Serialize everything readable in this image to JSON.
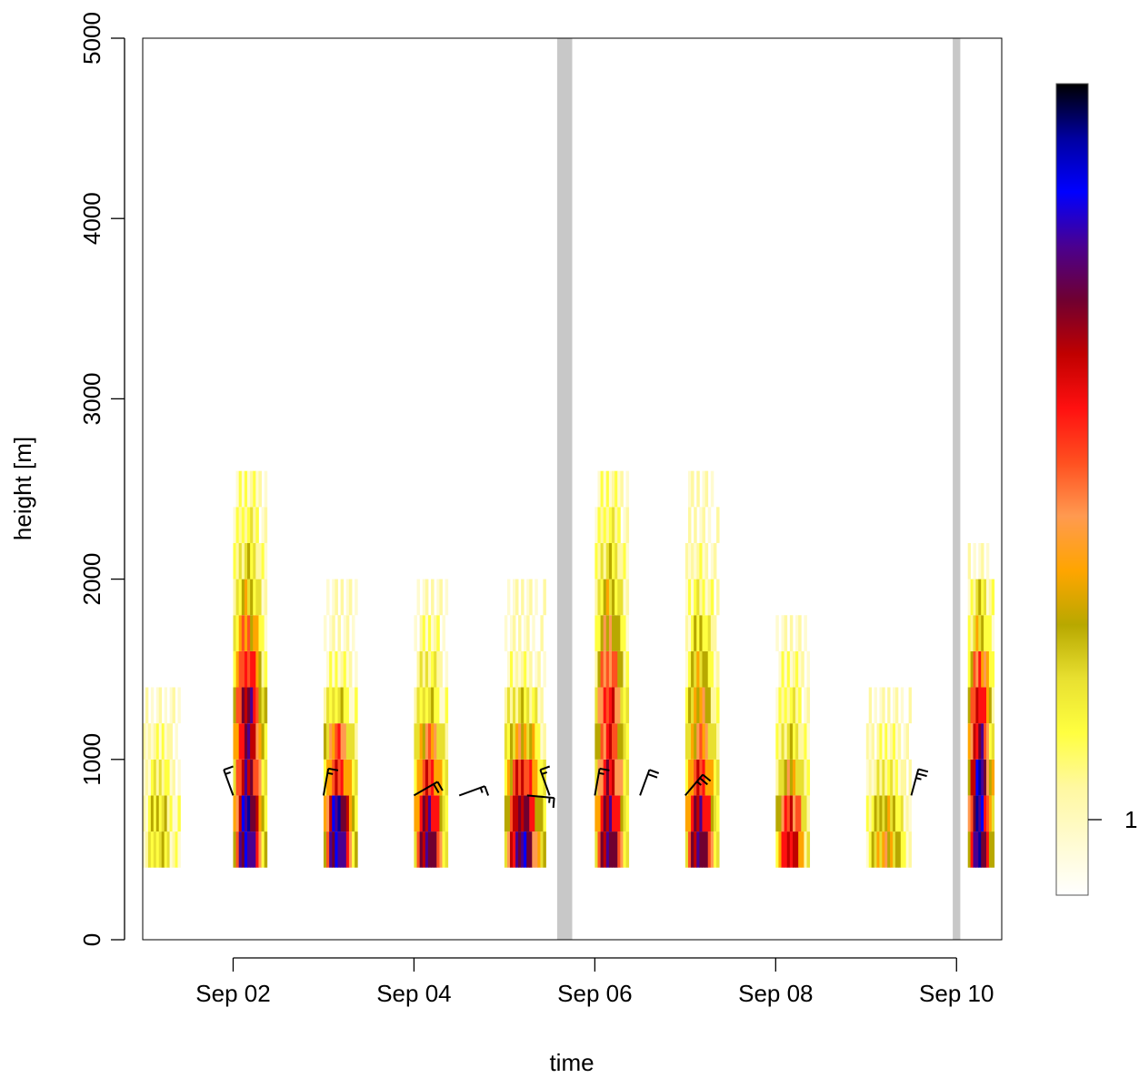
{
  "chart_data": {
    "type": "heatmap",
    "title": "",
    "xlabel": "time",
    "ylabel": "height [m]",
    "x_range": [
      "2022-09-01 00:00",
      "2022-09-10 12:00"
    ],
    "ylim": [
      0,
      5000
    ],
    "x_tick_labels": [
      "Sep 02",
      "Sep 04",
      "Sep 06",
      "Sep 08",
      "Sep 10"
    ],
    "x_tick_dates": [
      "2022-09-02",
      "2022-09-04",
      "2022-09-06",
      "2022-09-08",
      "2022-09-10"
    ],
    "y_ticks": [
      0,
      1000,
      2000,
      3000,
      4000,
      5000
    ],
    "y_tick_labels": [
      "0",
      "1000",
      "2000",
      "3000",
      "4000",
      "5000"
    ],
    "bin_height_m": 200,
    "lowest_bin_m": 400,
    "colorbar": {
      "tick_label": "1",
      "colors": [
        "#ffffff",
        "#fffbd0",
        "#fff8a0",
        "#ffff40",
        "#e8e030",
        "#b8a800",
        "#ffa500",
        "#ff9a50",
        "#ff5020",
        "#ff1010",
        "#c00000",
        "#700030",
        "#4a0090",
        "#0000ff",
        "#0000a0",
        "#000000"
      ]
    },
    "gaps": [
      {
        "start": "2022-09-05 14:00",
        "end": "2022-09-05 18:00",
        "color": "#c8c8c8"
      },
      {
        "start": "2022-09-09 23:00",
        "end": "2022-09-10 01:00",
        "color": "#c8c8c8"
      }
    ],
    "series": [
      {
        "start": "2022-09-01 00:00",
        "end": "2022-09-01 10:00",
        "levels": [
          4,
          4,
          3,
          2,
          1,
          0,
          0,
          0,
          0,
          0,
          0
        ]
      },
      {
        "start": "2022-09-02 00:00",
        "end": "2022-09-02 09:00",
        "levels": [
          13,
          13,
          11,
          11,
          11,
          9,
          7,
          5,
          4,
          3,
          2
        ]
      },
      {
        "start": "2022-09-03 00:00",
        "end": "2022-09-03 09:00",
        "levels": [
          13,
          13,
          9,
          8,
          4,
          2,
          1,
          1,
          0,
          0,
          0
        ]
      },
      {
        "start": "2022-09-04 00:00",
        "end": "2022-09-04 09:00",
        "levels": [
          12,
          11,
          9,
          7,
          4,
          3,
          2,
          1,
          0,
          0,
          0
        ]
      },
      {
        "start": "2022-09-05 00:00",
        "end": "2022-09-05 11:00",
        "levels": [
          12,
          11,
          9,
          6,
          4,
          2,
          1,
          1,
          0,
          0,
          0
        ]
      },
      {
        "start": "2022-09-06 00:00",
        "end": "2022-09-06 09:00",
        "levels": [
          12,
          11,
          10,
          9,
          9,
          8,
          6,
          5,
          4,
          3,
          2
        ]
      },
      {
        "start": "2022-09-07 00:00",
        "end": "2022-09-07 09:00",
        "levels": [
          12,
          11,
          9,
          7,
          6,
          5,
          4,
          3,
          2,
          1,
          1
        ]
      },
      {
        "start": "2022-09-08 00:00",
        "end": "2022-09-08 09:00",
        "levels": [
          10,
          9,
          6,
          4,
          3,
          2,
          1,
          0,
          0,
          0,
          0
        ]
      },
      {
        "start": "2022-09-09 00:00",
        "end": "2022-09-09 12:00",
        "levels": [
          6,
          5,
          3,
          2,
          1,
          0,
          0,
          0,
          0,
          0,
          0
        ]
      },
      {
        "start": "2022-09-10 03:00",
        "end": "2022-09-10 10:00",
        "levels": [
          13,
          13,
          13,
          11,
          10,
          8,
          5,
          4,
          1,
          0,
          0
        ]
      }
    ],
    "wind_barbs": [
      {
        "time": "2022-09-02 00:00",
        "height": 800,
        "direction_deg": 340,
        "speed_kt": 15
      },
      {
        "time": "2022-09-03 00:00",
        "height": 800,
        "direction_deg": 10,
        "speed_kt": 15
      },
      {
        "time": "2022-09-04 00:00",
        "height": 800,
        "direction_deg": 60,
        "speed_kt": 20
      },
      {
        "time": "2022-09-04 12:00",
        "height": 800,
        "direction_deg": 70,
        "speed_kt": 15
      },
      {
        "time": "2022-09-05 06:00",
        "height": 800,
        "direction_deg": 95,
        "speed_kt": 15
      },
      {
        "time": "2022-09-05 12:00",
        "height": 800,
        "direction_deg": 340,
        "speed_kt": 15
      },
      {
        "time": "2022-09-06 00:00",
        "height": 800,
        "direction_deg": 10,
        "speed_kt": 15
      },
      {
        "time": "2022-09-06 12:00",
        "height": 800,
        "direction_deg": 20,
        "speed_kt": 20
      },
      {
        "time": "2022-09-07 00:00",
        "height": 800,
        "direction_deg": 40,
        "speed_kt": 25
      },
      {
        "time": "2022-09-09 12:00",
        "height": 800,
        "direction_deg": 15,
        "speed_kt": 25
      }
    ]
  }
}
